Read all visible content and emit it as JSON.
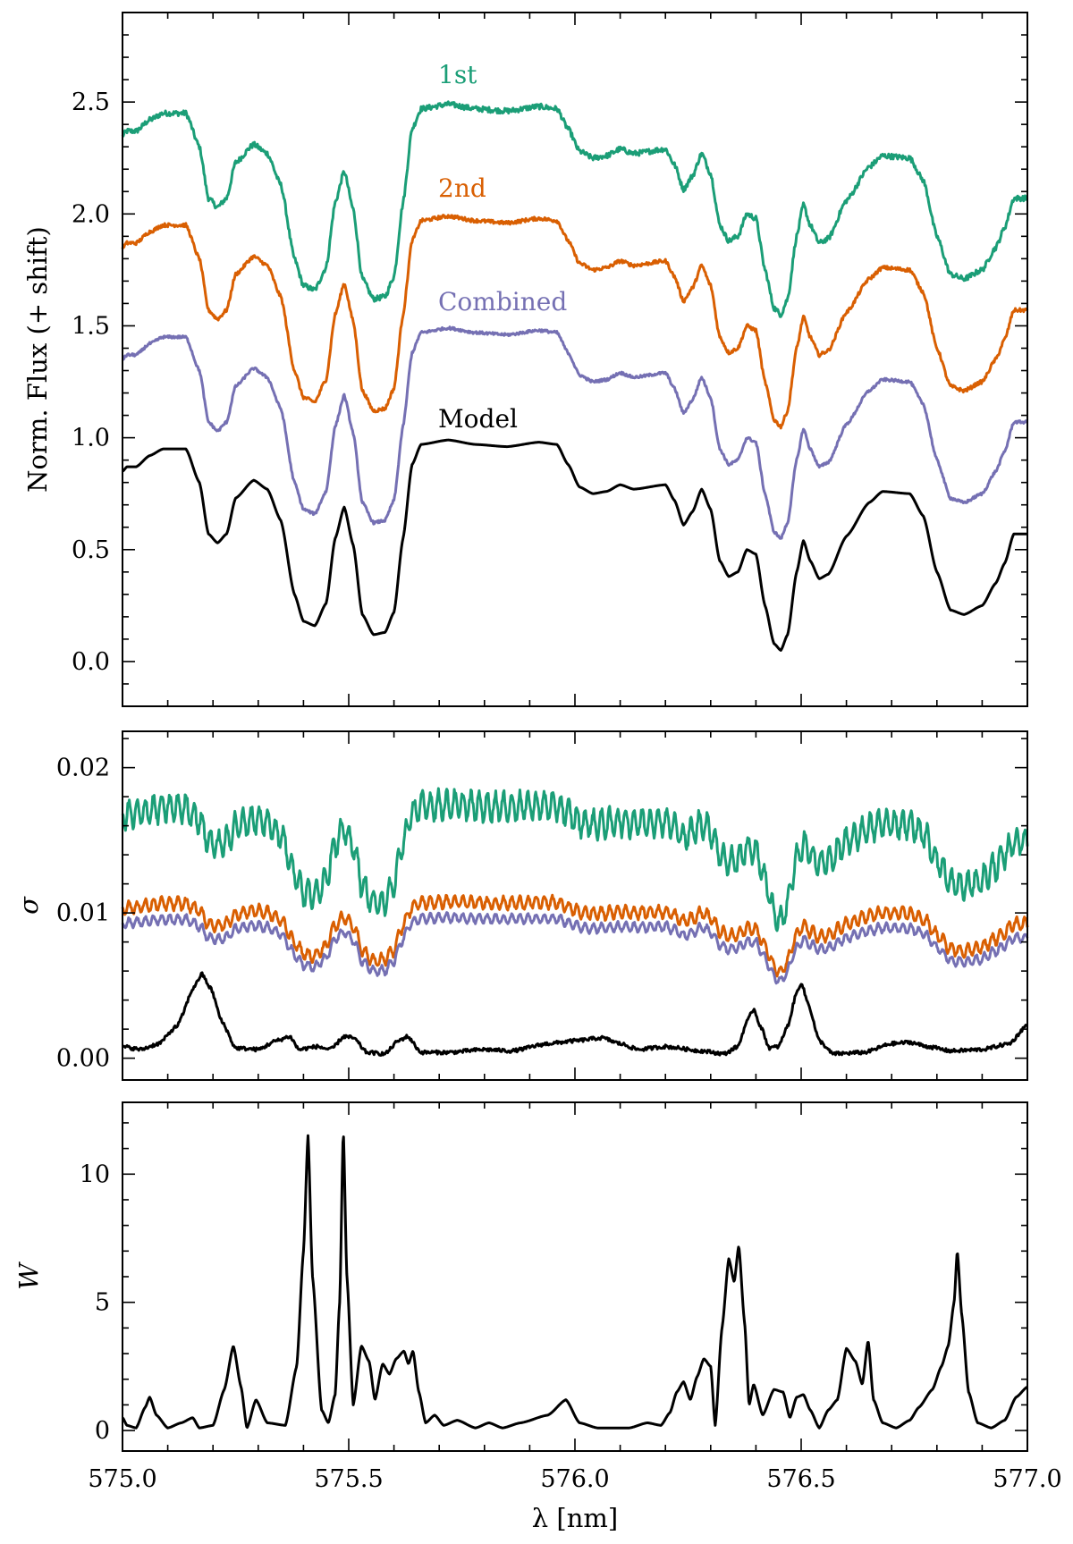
{
  "chart_data": [
    {
      "panel": "top",
      "type": "line",
      "ylabel": "Norm. Flux (+ shift)",
      "xlabel": "",
      "xlim": [
        575.0,
        577.0
      ],
      "ylim": [
        -0.2,
        2.9
      ],
      "yticks": [
        0.0,
        0.5,
        1.0,
        1.5,
        2.0,
        2.5
      ],
      "ytick_labels": [
        "0.0",
        "0.5",
        "1.0",
        "1.5",
        "2.0",
        "2.5"
      ],
      "model_points": [
        [
          575.0,
          0.85
        ],
        [
          575.01,
          0.87
        ],
        [
          575.03,
          0.87
        ],
        [
          575.06,
          0.92
        ],
        [
          575.09,
          0.95
        ],
        [
          575.14,
          0.95
        ],
        [
          575.17,
          0.8
        ],
        [
          575.19,
          0.57
        ],
        [
          575.21,
          0.53
        ],
        [
          575.23,
          0.57
        ],
        [
          575.25,
          0.73
        ],
        [
          575.29,
          0.81
        ],
        [
          575.32,
          0.77
        ],
        [
          575.35,
          0.63
        ],
        [
          575.38,
          0.3
        ],
        [
          575.4,
          0.18
        ],
        [
          575.425,
          0.16
        ],
        [
          575.45,
          0.26
        ],
        [
          575.47,
          0.55
        ],
        [
          575.49,
          0.69
        ],
        [
          575.51,
          0.52
        ],
        [
          575.53,
          0.21
        ],
        [
          575.555,
          0.12
        ],
        [
          575.58,
          0.13
        ],
        [
          575.6,
          0.22
        ],
        [
          575.62,
          0.55
        ],
        [
          575.64,
          0.88
        ],
        [
          575.66,
          0.97
        ],
        [
          575.72,
          0.99
        ],
        [
          575.78,
          0.97
        ],
        [
          575.85,
          0.96
        ],
        [
          575.92,
          0.98
        ],
        [
          575.96,
          0.97
        ],
        [
          575.985,
          0.88
        ],
        [
          576.01,
          0.78
        ],
        [
          576.04,
          0.75
        ],
        [
          576.07,
          0.76
        ],
        [
          576.1,
          0.79
        ],
        [
          576.13,
          0.77
        ],
        [
          576.2,
          0.79
        ],
        [
          576.22,
          0.72
        ],
        [
          576.24,
          0.61
        ],
        [
          576.26,
          0.67
        ],
        [
          576.28,
          0.77
        ],
        [
          576.3,
          0.68
        ],
        [
          576.32,
          0.45
        ],
        [
          576.34,
          0.38
        ],
        [
          576.36,
          0.4
        ],
        [
          576.38,
          0.5
        ],
        [
          576.4,
          0.48
        ],
        [
          576.42,
          0.25
        ],
        [
          576.44,
          0.08
        ],
        [
          576.455,
          0.05
        ],
        [
          576.47,
          0.12
        ],
        [
          576.49,
          0.4
        ],
        [
          576.505,
          0.54
        ],
        [
          576.52,
          0.45
        ],
        [
          576.54,
          0.37
        ],
        [
          576.56,
          0.39
        ],
        [
          576.6,
          0.56
        ],
        [
          576.65,
          0.71
        ],
        [
          576.68,
          0.76
        ],
        [
          576.74,
          0.75
        ],
        [
          576.77,
          0.65
        ],
        [
          576.8,
          0.4
        ],
        [
          576.83,
          0.23
        ],
        [
          576.86,
          0.21
        ],
        [
          576.9,
          0.25
        ],
        [
          576.93,
          0.35
        ],
        [
          576.95,
          0.44
        ],
        [
          576.97,
          0.57
        ]
      ],
      "series": [
        {
          "name": "1st",
          "offset": 1.5,
          "color": "#1b9e77",
          "noise": 0.012
        },
        {
          "name": "2nd",
          "offset": 1.0,
          "color": "#d95f02",
          "noise": 0.008
        },
        {
          "name": "Combined",
          "offset": 0.5,
          "color": "#7570b3",
          "noise": 0.006
        },
        {
          "name": "Model",
          "offset": 0.0,
          "color": "#000000",
          "noise": 0.0
        }
      ]
    },
    {
      "panel": "middle",
      "type": "line",
      "ylabel": "σ",
      "xlabel": "",
      "xlim": [
        575.0,
        577.0
      ],
      "ylim": [
        -0.0015,
        0.0225
      ],
      "yticks": [
        0.0,
        0.01,
        0.02
      ],
      "ytick_labels": [
        "0.00",
        "0.01",
        "0.02"
      ],
      "series": [
        {
          "name": "1st",
          "color": "#1b9e77"
        },
        {
          "name": "2nd",
          "color": "#d95f02"
        },
        {
          "name": "Combined",
          "color": "#7570b3"
        },
        {
          "name": "Model",
          "color": "#000000",
          "points": [
            [
              575.0,
              0.0008
            ],
            [
              575.04,
              0.0006
            ],
            [
              575.08,
              0.001
            ],
            [
              575.12,
              0.0022
            ],
            [
              575.16,
              0.005
            ],
            [
              575.175,
              0.0058
            ],
            [
              575.195,
              0.0048
            ],
            [
              575.22,
              0.0025
            ],
            [
              575.25,
              0.0007
            ],
            [
              575.3,
              0.0006
            ],
            [
              575.34,
              0.0012
            ],
            [
              575.37,
              0.0015
            ],
            [
              575.39,
              0.0006
            ],
            [
              575.43,
              0.0008
            ],
            [
              575.46,
              0.0006
            ],
            [
              575.49,
              0.0015
            ],
            [
              575.51,
              0.0014
            ],
            [
              575.54,
              0.0004
            ],
            [
              575.58,
              0.0003
            ],
            [
              575.61,
              0.0012
            ],
            [
              575.63,
              0.0015
            ],
            [
              575.66,
              0.0004
            ],
            [
              575.72,
              0.0004
            ],
            [
              575.8,
              0.0006
            ],
            [
              575.86,
              0.0005
            ],
            [
              575.94,
              0.001
            ],
            [
              576.0,
              0.0012
            ],
            [
              576.06,
              0.0014
            ],
            [
              576.1,
              0.001
            ],
            [
              576.14,
              0.0006
            ],
            [
              576.2,
              0.0008
            ],
            [
              576.28,
              0.0005
            ],
            [
              576.33,
              0.0003
            ],
            [
              576.36,
              0.0008
            ],
            [
              576.38,
              0.0025
            ],
            [
              576.395,
              0.0034
            ],
            [
              576.41,
              0.0022
            ],
            [
              576.43,
              0.0007
            ],
            [
              576.45,
              0.0008
            ],
            [
              576.47,
              0.0022
            ],
            [
              576.49,
              0.0045
            ],
            [
              576.5,
              0.0052
            ],
            [
              576.515,
              0.0038
            ],
            [
              576.54,
              0.0012
            ],
            [
              576.57,
              0.0003
            ],
            [
              576.64,
              0.0004
            ],
            [
              576.7,
              0.001
            ],
            [
              576.74,
              0.0011
            ],
            [
              576.78,
              0.0008
            ],
            [
              576.83,
              0.0005
            ],
            [
              576.9,
              0.0006
            ],
            [
              576.96,
              0.001
            ],
            [
              577.0,
              0.0023
            ]
          ]
        }
      ]
    },
    {
      "panel": "bottom",
      "type": "line",
      "ylabel": "W",
      "xlabel": "λ [nm]",
      "xlim": [
        575.0,
        577.0
      ],
      "ylim": [
        -0.8,
        12.8
      ],
      "yticks": [
        0,
        5,
        10
      ],
      "ytick_labels": [
        "0",
        "5",
        "10"
      ],
      "xticks": [
        575.0,
        575.5,
        576.0,
        576.5,
        577.0
      ],
      "xtick_labels": [
        "575.0",
        "575.5",
        "576.0",
        "576.5",
        "577.0"
      ],
      "series": [
        {
          "name": "W",
          "color": "#000000",
          "points": [
            [
              575.0,
              0.5
            ],
            [
              575.01,
              0.2
            ],
            [
              575.03,
              0.1
            ],
            [
              575.05,
              0.9
            ],
            [
              575.06,
              1.3
            ],
            [
              575.075,
              0.6
            ],
            [
              575.1,
              0.1
            ],
            [
              575.13,
              0.3
            ],
            [
              575.155,
              0.5
            ],
            [
              575.17,
              0.1
            ],
            [
              575.2,
              0.2
            ],
            [
              575.225,
              1.6
            ],
            [
              575.245,
              3.3
            ],
            [
              575.262,
              1.7
            ],
            [
              575.275,
              0.1
            ],
            [
              575.295,
              1.2
            ],
            [
              575.32,
              0.3
            ],
            [
              575.36,
              0.2
            ],
            [
              575.385,
              2.5
            ],
            [
              575.4,
              7.0
            ],
            [
              575.41,
              11.5
            ],
            [
              575.42,
              6.0
            ],
            [
              575.44,
              0.8
            ],
            [
              575.455,
              0.3
            ],
            [
              575.47,
              1.4
            ],
            [
              575.48,
              5.0
            ],
            [
              575.488,
              11.7
            ],
            [
              575.496,
              6.0
            ],
            [
              575.51,
              1.0
            ],
            [
              575.528,
              3.3
            ],
            [
              575.545,
              2.7
            ],
            [
              575.558,
              1.2
            ],
            [
              575.575,
              2.6
            ],
            [
              575.59,
              2.2
            ],
            [
              575.605,
              2.8
            ],
            [
              575.622,
              3.1
            ],
            [
              575.632,
              2.6
            ],
            [
              575.642,
              3.1
            ],
            [
              575.655,
              1.5
            ],
            [
              575.67,
              0.3
            ],
            [
              575.69,
              0.6
            ],
            [
              575.71,
              0.2
            ],
            [
              575.74,
              0.4
            ],
            [
              575.78,
              0.1
            ],
            [
              575.81,
              0.3
            ],
            [
              575.84,
              0.1
            ],
            [
              575.88,
              0.3
            ],
            [
              575.94,
              0.6
            ],
            [
              575.98,
              1.2
            ],
            [
              576.01,
              0.3
            ],
            [
              576.05,
              0.1
            ],
            [
              576.12,
              0.1
            ],
            [
              576.16,
              0.3
            ],
            [
              576.19,
              0.2
            ],
            [
              576.21,
              0.7
            ],
            [
              576.225,
              1.5
            ],
            [
              576.24,
              1.9
            ],
            [
              576.255,
              1.2
            ],
            [
              576.27,
              2.1
            ],
            [
              576.285,
              2.8
            ],
            [
              576.3,
              2.5
            ],
            [
              576.31,
              0.2
            ],
            [
              576.325,
              4.0
            ],
            [
              576.34,
              6.7
            ],
            [
              576.352,
              5.8
            ],
            [
              576.362,
              7.2
            ],
            [
              576.375,
              4.2
            ],
            [
              576.385,
              1.0
            ],
            [
              576.395,
              1.8
            ],
            [
              576.415,
              0.6
            ],
            [
              576.44,
              1.6
            ],
            [
              576.46,
              1.5
            ],
            [
              576.475,
              0.5
            ],
            [
              576.49,
              1.3
            ],
            [
              576.505,
              1.4
            ],
            [
              576.52,
              0.8
            ],
            [
              576.54,
              0.1
            ],
            [
              576.56,
              0.8
            ],
            [
              576.58,
              1.2
            ],
            [
              576.6,
              3.2
            ],
            [
              576.62,
              2.7
            ],
            [
              576.635,
              1.8
            ],
            [
              576.648,
              3.5
            ],
            [
              576.66,
              1.2
            ],
            [
              576.68,
              0.3
            ],
            [
              576.71,
              0.1
            ],
            [
              576.74,
              0.4
            ],
            [
              576.76,
              0.9
            ],
            [
              576.79,
              1.6
            ],
            [
              576.81,
              2.5
            ],
            [
              576.825,
              3.3
            ],
            [
              576.838,
              5.0
            ],
            [
              576.845,
              7.0
            ],
            [
              576.855,
              4.5
            ],
            [
              576.87,
              1.5
            ],
            [
              576.89,
              0.3
            ],
            [
              576.92,
              0.1
            ],
            [
              576.95,
              0.4
            ],
            [
              576.975,
              1.3
            ],
            [
              577.0,
              1.7
            ]
          ]
        }
      ]
    }
  ]
}
